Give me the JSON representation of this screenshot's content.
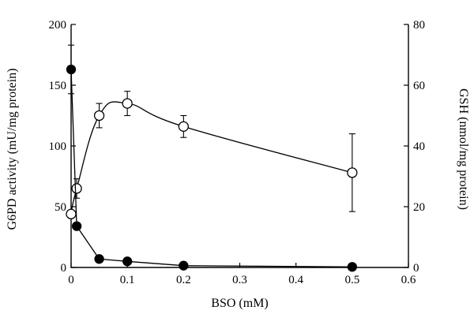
{
  "chart_data": {
    "type": "line",
    "title": "",
    "xlabel": "BSO (mM)",
    "ylabel": "G6PD activity (mU/mg protein)",
    "y2label": "GSH (nmol/mg protein)",
    "xlim": [
      0,
      0.6
    ],
    "ylim": [
      0,
      200
    ],
    "y2lim": [
      0,
      80
    ],
    "xticks": [
      "0",
      "0.1",
      "0.2",
      "0.3",
      "0.4",
      "0.5",
      "0.6"
    ],
    "yticks": [
      "0",
      "50",
      "100",
      "150",
      "200"
    ],
    "y2ticks": [
      "0",
      "20",
      "40",
      "60",
      "80"
    ],
    "grid": false,
    "series": [
      {
        "marker": "open-circle",
        "axis": "left",
        "smooth": true,
        "points": [
          {
            "x": 0,
            "y": 44,
            "err": 0
          },
          {
            "x": 0.01,
            "y": 65,
            "err": 8
          },
          {
            "x": 0.05,
            "y": 125,
            "err": 10
          },
          {
            "x": 0.1,
            "y": 135,
            "err": 10
          },
          {
            "x": 0.2,
            "y": 116,
            "err": 9
          },
          {
            "x": 0.5,
            "y": 78,
            "err": 32
          }
        ]
      },
      {
        "marker": "filled-circle",
        "axis": "left",
        "smooth": false,
        "points": [
          {
            "x": 0,
            "y": 163,
            "err": 20
          },
          {
            "x": 0.01,
            "y": 34,
            "err": 0
          },
          {
            "x": 0.05,
            "y": 7,
            "err": 0
          },
          {
            "x": 0.1,
            "y": 5,
            "err": 0
          },
          {
            "x": 0.2,
            "y": 1.5,
            "err": 0
          },
          {
            "x": 0.5,
            "y": 0.5,
            "err": 0
          }
        ]
      }
    ]
  }
}
